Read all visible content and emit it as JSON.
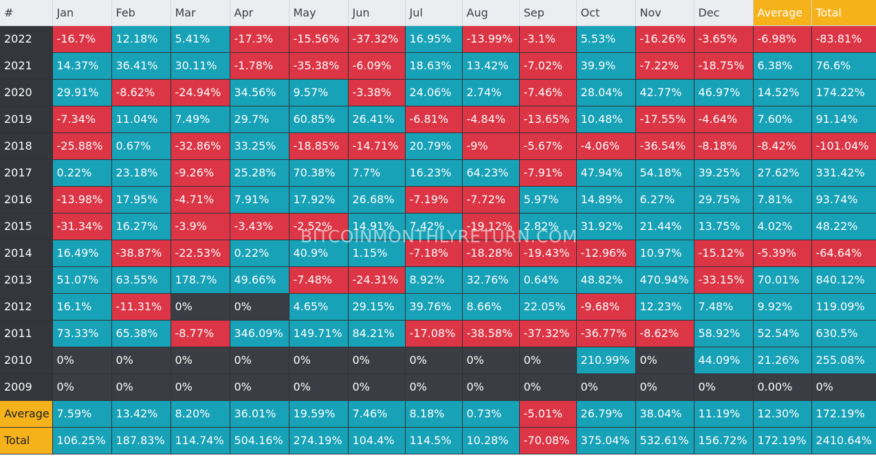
{
  "watermark": "BITCOINMONTHLYRETURN.COM",
  "colors": {
    "positive": "#17a2b8",
    "negative": "#dc3545",
    "zero": "#3a3e44",
    "highlight": "#f6b21b",
    "header": "#ecedf1"
  },
  "chart_data": {
    "type": "table",
    "columns": [
      "#",
      "Jan",
      "Feb",
      "Mar",
      "Apr",
      "May",
      "Jun",
      "Jul",
      "Aug",
      "Sep",
      "Oct",
      "Nov",
      "Dec",
      "Average",
      "Total"
    ],
    "rows": [
      {
        "label": "2022",
        "cells": [
          "-16.7%",
          "12.18%",
          "5.41%",
          "-17.3%",
          "-15.56%",
          "-37.32%",
          "16.95%",
          "-13.99%",
          "-3.1%",
          "5.53%",
          "-16.26%",
          "-3.65%",
          "-6.98%",
          "-83.81%"
        ]
      },
      {
        "label": "2021",
        "cells": [
          "14.37%",
          "36.41%",
          "30.11%",
          "-1.78%",
          "-35.38%",
          "-6.09%",
          "18.63%",
          "13.42%",
          "-7.02%",
          "39.9%",
          "-7.22%",
          "-18.75%",
          "6.38%",
          "76.6%"
        ]
      },
      {
        "label": "2020",
        "cells": [
          "29.91%",
          "-8.62%",
          "-24.94%",
          "34.56%",
          "9.57%",
          "-3.38%",
          "24.06%",
          "2.74%",
          "-7.46%",
          "28.04%",
          "42.77%",
          "46.97%",
          "14.52%",
          "174.22%"
        ]
      },
      {
        "label": "2019",
        "cells": [
          "-7.34%",
          "11.04%",
          "7.49%",
          "29.7%",
          "60.85%",
          "26.41%",
          "-6.81%",
          "-4.84%",
          "-13.65%",
          "10.48%",
          "-17.55%",
          "-4.64%",
          "7.60%",
          "91.14%"
        ]
      },
      {
        "label": "2018",
        "cells": [
          "-25.88%",
          "0.67%",
          "-32.86%",
          "33.25%",
          "-18.85%",
          "-14.71%",
          "20.79%",
          "-9%",
          "-5.67%",
          "-4.06%",
          "-36.54%",
          "-8.18%",
          "-8.42%",
          "-101.04%"
        ]
      },
      {
        "label": "2017",
        "cells": [
          "0.22%",
          "23.18%",
          "-9.26%",
          "25.28%",
          "70.38%",
          "7.7%",
          "16.23%",
          "64.23%",
          "-7.91%",
          "47.94%",
          "54.18%",
          "39.25%",
          "27.62%",
          "331.42%"
        ]
      },
      {
        "label": "2016",
        "cells": [
          "-13.98%",
          "17.95%",
          "-4.71%",
          "7.91%",
          "17.92%",
          "26.68%",
          "-7.19%",
          "-7.72%",
          "5.97%",
          "14.89%",
          "6.27%",
          "29.75%",
          "7.81%",
          "93.74%"
        ]
      },
      {
        "label": "2015",
        "cells": [
          "-31.34%",
          "16.27%",
          "-3.9%",
          "-3.43%",
          "-2.52%",
          "14.91%",
          "7.42%",
          "-19.12%",
          "2.82%",
          "31.92%",
          "21.44%",
          "13.75%",
          "4.02%",
          "48.22%"
        ]
      },
      {
        "label": "2014",
        "cells": [
          "16.49%",
          "-38.87%",
          "-22.53%",
          "0.22%",
          "40.9%",
          "1.15%",
          "-7.18%",
          "-18.28%",
          "-19.43%",
          "-12.96%",
          "10.97%",
          "-15.12%",
          "-5.39%",
          "-64.64%"
        ]
      },
      {
        "label": "2013",
        "cells": [
          "51.07%",
          "63.55%",
          "178.7%",
          "49.66%",
          "-7.48%",
          "-24.31%",
          "8.92%",
          "32.76%",
          "0.64%",
          "48.82%",
          "470.94%",
          "-33.15%",
          "70.01%",
          "840.12%"
        ]
      },
      {
        "label": "2012",
        "cells": [
          "16.1%",
          "-11.31%",
          "0%",
          "0%",
          "4.65%",
          "29.15%",
          "39.76%",
          "8.66%",
          "22.05%",
          "-9.68%",
          "12.23%",
          "7.48%",
          "9.92%",
          "119.09%"
        ]
      },
      {
        "label": "2011",
        "cells": [
          "73.33%",
          "65.38%",
          "-8.77%",
          "346.09%",
          "149.71%",
          "84.21%",
          "-17.08%",
          "-38.58%",
          "-37.32%",
          "-36.77%",
          "-8.62%",
          "58.92%",
          "52.54%",
          "630.5%"
        ]
      },
      {
        "label": "2010",
        "cells": [
          "0%",
          "0%",
          "0%",
          "0%",
          "0%",
          "0%",
          "0%",
          "0%",
          "0%",
          "210.99%",
          "0%",
          "44.09%",
          "21.26%",
          "255.08%"
        ]
      },
      {
        "label": "2009",
        "cells": [
          "0%",
          "0%",
          "0%",
          "0%",
          "0%",
          "0%",
          "0%",
          "0%",
          "0%",
          "0%",
          "0%",
          "0%",
          "0.00%",
          "0%"
        ]
      },
      {
        "label": "Average",
        "cells": [
          "7.59%",
          "13.42%",
          "8.20%",
          "36.01%",
          "19.59%",
          "7.46%",
          "8.18%",
          "0.73%",
          "-5.01%",
          "26.79%",
          "38.04%",
          "11.19%",
          "12.30%",
          "172.19%"
        ]
      },
      {
        "label": "Total",
        "cells": [
          "106.25%",
          "187.83%",
          "114.74%",
          "504.16%",
          "274.19%",
          "104.4%",
          "114.5%",
          "10.28%",
          "-70.08%",
          "375.04%",
          "532.61%",
          "156.72%",
          "172.19%",
          "2410.64%"
        ]
      }
    ]
  }
}
